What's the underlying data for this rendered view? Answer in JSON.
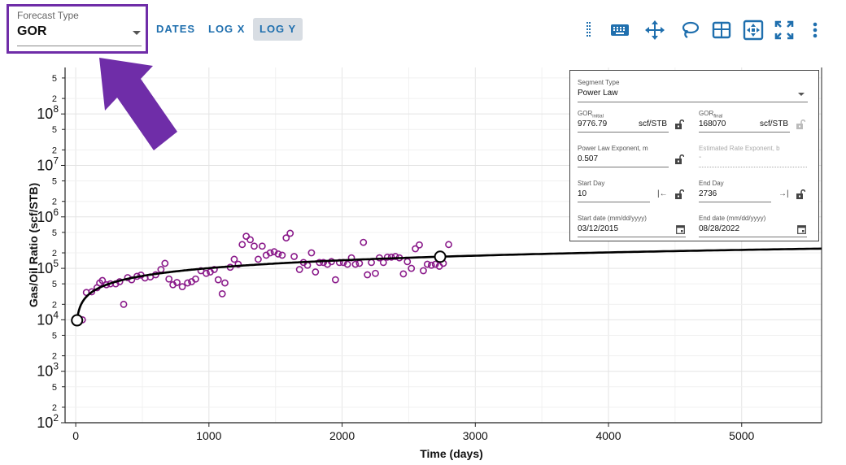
{
  "forecast_type": {
    "label": "Forecast Type",
    "value": "GOR"
  },
  "toolbar": {
    "dates": "DATES",
    "log_x": "LOG X",
    "log_y": "LOG Y"
  },
  "icons": [
    "drag-handle-icon",
    "keyboard-icon",
    "move-icon",
    "lasso-icon",
    "table-icon",
    "zoom-fit-icon",
    "fullscreen-icon",
    "more-vert-icon"
  ],
  "colors": {
    "accent": "#1f6fae",
    "highlight": "#6f2da8",
    "scatter": "#8a1a8a",
    "curve": "#000000"
  },
  "panel": {
    "segment_type_label": "Segment Type",
    "segment_type_value": "Power Law",
    "gor_initial_label": "GOR",
    "gor_initial_sub": "initial",
    "gor_initial_value": "9776.79",
    "gor_initial_unit": "scf/STB",
    "gor_final_label": "GOR",
    "gor_final_sub": "final",
    "gor_final_value": "168070",
    "gor_final_unit": "scf/STB",
    "exponent_label": "Power Law Exponent, m",
    "exponent_value": "0.507",
    "rate_exponent_label": "Estimated Rate Exponent, b",
    "rate_exponent_value": "-",
    "start_day_label": "Start Day",
    "start_day_value": "10",
    "end_day_label": "End Day",
    "end_day_value": "2736",
    "start_date_label": "Start date (mm/dd/yyyy)",
    "start_date_value": "03/12/2015",
    "end_date_label": "End date (mm/dd/yyyy)",
    "end_date_value": "08/28/2022"
  },
  "chart_data": {
    "type": "scatter",
    "xlabel": "Time (days)",
    "ylabel": "Gas/Oil Ratio (scf/STB)",
    "xlim": [
      -80,
      5600
    ],
    "ylim": [
      100,
      800000000
    ],
    "y_scale": "log",
    "grid": true,
    "x_ticks": [
      0,
      1000,
      2000,
      3000,
      4000,
      5000
    ],
    "y_major_ticks": [
      100,
      1000,
      10000,
      100000,
      1000000,
      10000000,
      100000000
    ],
    "y_minor_labels": [
      "2",
      "5"
    ],
    "series": [
      {
        "type": "scatter",
        "points": [
          [
            50,
            10000
          ],
          [
            80,
            34000
          ],
          [
            120,
            35000
          ],
          [
            160,
            42000
          ],
          [
            180,
            52000
          ],
          [
            200,
            58000
          ],
          [
            230,
            48000
          ],
          [
            260,
            50000
          ],
          [
            300,
            50000
          ],
          [
            330,
            55000
          ],
          [
            360,
            20000
          ],
          [
            390,
            66000
          ],
          [
            420,
            60000
          ],
          [
            460,
            70000
          ],
          [
            490,
            74000
          ],
          [
            520,
            65000
          ],
          [
            560,
            68000
          ],
          [
            600,
            75000
          ],
          [
            640,
            95000
          ],
          [
            670,
            125000
          ],
          [
            700,
            62000
          ],
          [
            730,
            48000
          ],
          [
            760,
            53000
          ],
          [
            800,
            44000
          ],
          [
            840,
            52000
          ],
          [
            870,
            55000
          ],
          [
            900,
            62000
          ],
          [
            940,
            90000
          ],
          [
            980,
            80000
          ],
          [
            1010,
            85000
          ],
          [
            1040,
            95000
          ],
          [
            1070,
            60000
          ],
          [
            1100,
            32000
          ],
          [
            1120,
            52000
          ],
          [
            1160,
            105000
          ],
          [
            1190,
            150000
          ],
          [
            1220,
            120000
          ],
          [
            1250,
            290000
          ],
          [
            1280,
            420000
          ],
          [
            1310,
            360000
          ],
          [
            1340,
            270000
          ],
          [
            1370,
            150000
          ],
          [
            1400,
            270000
          ],
          [
            1430,
            180000
          ],
          [
            1460,
            200000
          ],
          [
            1490,
            210000
          ],
          [
            1520,
            190000
          ],
          [
            1550,
            180000
          ],
          [
            1580,
            390000
          ],
          [
            1610,
            480000
          ],
          [
            1640,
            170000
          ],
          [
            1680,
            95000
          ],
          [
            1710,
            130000
          ],
          [
            1740,
            115000
          ],
          [
            1770,
            200000
          ],
          [
            1800,
            85000
          ],
          [
            1830,
            130000
          ],
          [
            1860,
            130000
          ],
          [
            1890,
            120000
          ],
          [
            1920,
            135000
          ],
          [
            1950,
            60000
          ],
          [
            1980,
            130000
          ],
          [
            2010,
            130000
          ],
          [
            2040,
            120000
          ],
          [
            2070,
            160000
          ],
          [
            2100,
            120000
          ],
          [
            2130,
            125000
          ],
          [
            2160,
            320000
          ],
          [
            2190,
            75000
          ],
          [
            2220,
            130000
          ],
          [
            2250,
            80000
          ],
          [
            2280,
            160000
          ],
          [
            2310,
            130000
          ],
          [
            2340,
            165000
          ],
          [
            2370,
            165000
          ],
          [
            2400,
            170000
          ],
          [
            2430,
            160000
          ],
          [
            2460,
            78000
          ],
          [
            2490,
            135000
          ],
          [
            2520,
            100000
          ],
          [
            2550,
            240000
          ],
          [
            2580,
            285000
          ],
          [
            2610,
            90000
          ],
          [
            2640,
            120000
          ],
          [
            2670,
            115000
          ],
          [
            2700,
            120000
          ],
          [
            2730,
            110000
          ],
          [
            2760,
            125000
          ],
          [
            2800,
            290000
          ]
        ]
      },
      {
        "type": "line",
        "name": "Power Law",
        "t_start": 10,
        "t_end": 5600,
        "q_start": 9776.79,
        "exponent": 0.507
      }
    ],
    "segment_markers": [
      [
        10,
        9776.79
      ],
      [
        2736,
        168070
      ]
    ]
  }
}
